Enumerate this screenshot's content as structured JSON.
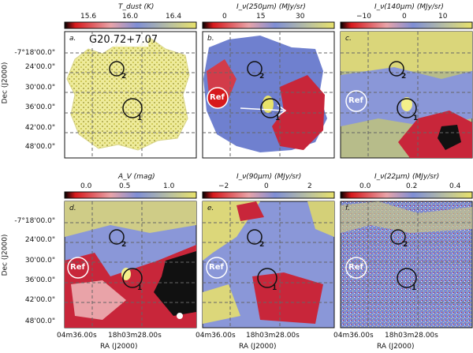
{
  "figure": {
    "y_axis_title": "Dec (J2000)",
    "x_axis_title": "RA (J2000)",
    "x_ticks": [
      "04m36.00s",
      "18h03m28.00s"
    ],
    "y_ticks": [
      "-7°18'00.0\"",
      "24'00.0\"",
      "30'00.0\"",
      "36'00.0\"",
      "42'00.0\"",
      "48'00.0\""
    ]
  },
  "panels": [
    {
      "id": "a",
      "letter": "a.",
      "cb_title": "T_dust (K)",
      "cb_ticks": [
        "15.6",
        "16.0",
        "16.4"
      ],
      "title": "G20.72+7.07",
      "marker_1": "1",
      "marker_2": "2",
      "ref": ""
    },
    {
      "id": "b",
      "letter": "b.",
      "cb_title": "I_ν(250μm) (MJy/sr)",
      "cb_ticks": [
        "0",
        "15",
        "30"
      ],
      "title": "",
      "marker_1": "1",
      "marker_2": "2",
      "ref": "Ref"
    },
    {
      "id": "c",
      "letter": "c.",
      "cb_title": "I_ν(140μm) (MJy/sr)",
      "cb_ticks": [
        "−10",
        "0",
        "10"
      ],
      "title": "",
      "marker_1": "1",
      "marker_2": "2",
      "ref": "Ref"
    },
    {
      "id": "d",
      "letter": "d.",
      "cb_title": "A_V (mag)",
      "cb_ticks": [
        "0.0",
        "0.5",
        "1.0"
      ],
      "title": "",
      "marker_1": "1",
      "marker_2": "2",
      "ref": "Ref"
    },
    {
      "id": "e",
      "letter": "e.",
      "cb_title": "I_ν(90μm) (MJy/sr)",
      "cb_ticks": [
        "−2",
        "0",
        "2"
      ],
      "title": "",
      "marker_1": "1",
      "marker_2": "2",
      "ref": "Ref"
    },
    {
      "id": "f",
      "letter": "f.",
      "cb_title": "I_ν(22μm) (MJy/sr)",
      "cb_ticks": [
        "0.0",
        "0.2",
        "0.4"
      ],
      "title": "",
      "marker_1": "1",
      "marker_2": "2",
      "ref": "Ref"
    }
  ],
  "colors": {
    "low": "#d7191c",
    "mid": "#8a97d8",
    "high": "#e8e26a",
    "void": "#000000"
  }
}
